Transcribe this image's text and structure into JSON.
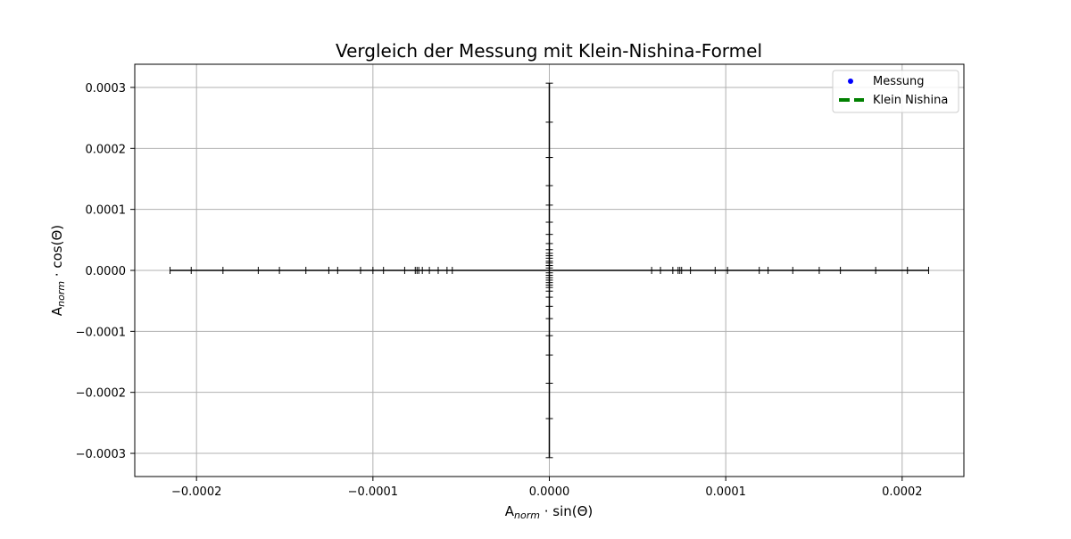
{
  "chart_data": {
    "type": "scatter",
    "title": "Vergleich der Messung mit Klein-Nishina-Formel",
    "xlabel": {
      "prefix": "A",
      "subscript": "norm",
      "suffix": " · sin(Θ)"
    },
    "ylabel": {
      "prefix": "A",
      "subscript": "norm",
      "suffix": " · cos(Θ)"
    },
    "xlim": [
      -0.000235,
      0.000235
    ],
    "ylim": [
      -0.000338,
      0.000338
    ],
    "grid": true,
    "legend_position": "top-right",
    "xticks": [
      -0.0002,
      -0.0001,
      0.0,
      0.0001,
      0.0002
    ],
    "xtick_labels": [
      "−0.0002",
      "−0.0001",
      "0.0000",
      "0.0001",
      "0.0002"
    ],
    "yticks": [
      -0.0003,
      -0.0002,
      -0.0001,
      0.0,
      0.0001,
      0.0002,
      0.0003
    ],
    "ytick_labels": [
      "−0.0003",
      "−0.0002",
      "−0.0001",
      "0.0000",
      "0.0001",
      "0.0002",
      "0.0003"
    ],
    "series": [
      {
        "name": "Messung",
        "color": "#0000ff",
        "marker": "dot",
        "errorbar_color": "#000000",
        "x_error_positions": [
          -0.000215,
          -0.000203,
          -0.000185,
          -0.000165,
          -0.000153,
          -0.000138,
          -0.000125,
          -0.00012,
          -0.000107,
          -0.0001,
          -9.4e-05,
          -8.2e-05,
          -7.6e-05,
          -7.5e-05,
          -7.4e-05,
          -7.2e-05,
          -6.8e-05,
          -6.3e-05,
          -5.8e-05,
          -5.5e-05,
          5.8e-05,
          6.3e-05,
          7e-05,
          7.3e-05,
          7.4e-05,
          7.5e-05,
          8e-05,
          9.4e-05,
          0.000101,
          0.000119,
          0.000124,
          0.000138,
          0.000153,
          0.000165,
          0.000185,
          0.000203,
          0.000215
        ],
        "y_error_positions": [
          0.000307,
          0.000243,
          0.000185,
          0.000139,
          0.000107,
          7.9e-05,
          5.9e-05,
          4.4e-05,
          3.4e-05,
          2.8e-05,
          2.4e-05,
          2e-05,
          1.5e-05,
          1.2e-05,
          8e-06,
          4e-06,
          -4e-06,
          -8e-06,
          -1.2e-05,
          -1.6e-05,
          -2e-05,
          -2.4e-05,
          -2.8e-05,
          -3.4e-05,
          -4.4e-05,
          -5.9e-05,
          -7.9e-05,
          -0.000107,
          -0.000139,
          -0.000185,
          -0.000243,
          -0.000307
        ]
      },
      {
        "name": "Klein Nishina",
        "color": "#008000",
        "line_style": "dashed"
      }
    ]
  }
}
